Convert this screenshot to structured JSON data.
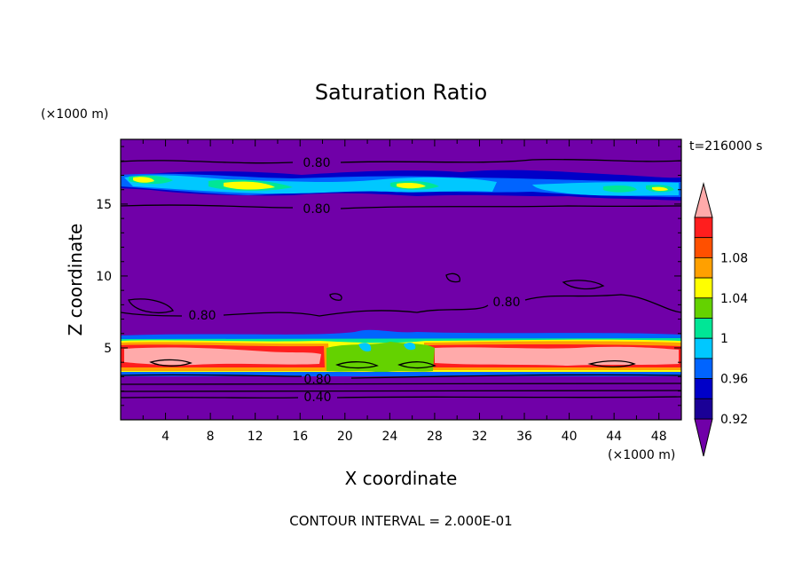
{
  "chart_data": {
    "type": "heatmap",
    "title": "Saturation Ratio",
    "xlabel": "X coordinate",
    "ylabel": "Z coordinate",
    "x_unit": "(×1000 m)",
    "y_unit": "(×1000 m)",
    "time_label": "t=216000 s",
    "footer": "CONTOUR INTERVAL = 2.000E-01",
    "xlim": [
      0,
      50
    ],
    "ylim": [
      0,
      19.5
    ],
    "xticks": [
      "4",
      "8",
      "12",
      "16",
      "20",
      "24",
      "28",
      "32",
      "36",
      "40",
      "44",
      "48"
    ],
    "yticks": [
      "5",
      "10",
      "15"
    ],
    "colorbar": {
      "levels": [
        0.92,
        0.94,
        0.96,
        0.98,
        1.0,
        1.02,
        1.04,
        1.06,
        1.08,
        1.1
      ],
      "labels": [
        "0.92",
        "0.96",
        "1",
        "1.04",
        "1.08"
      ],
      "colors": [
        "#1a0096",
        "#0000c8",
        "#0064ff",
        "#00c8ff",
        "#00e696",
        "#64d200",
        "#ffff00",
        "#ffa000",
        "#ff5000",
        "#ff1e1e"
      ],
      "under_color": "#7000a8",
      "over_color": "#ffaaaa"
    },
    "contour_labels": [
      "0.80",
      "0.80",
      "0.80",
      "0.80",
      "0.80",
      "0.40"
    ],
    "layers": [
      {
        "z_range": [
          16.0,
          17.8
        ],
        "description_value": "near saturation 0.96-1.04"
      },
      {
        "z_range": [
          3.8,
          5.8
        ],
        "description_value": "supersaturated 1.00-1.10"
      }
    ]
  }
}
